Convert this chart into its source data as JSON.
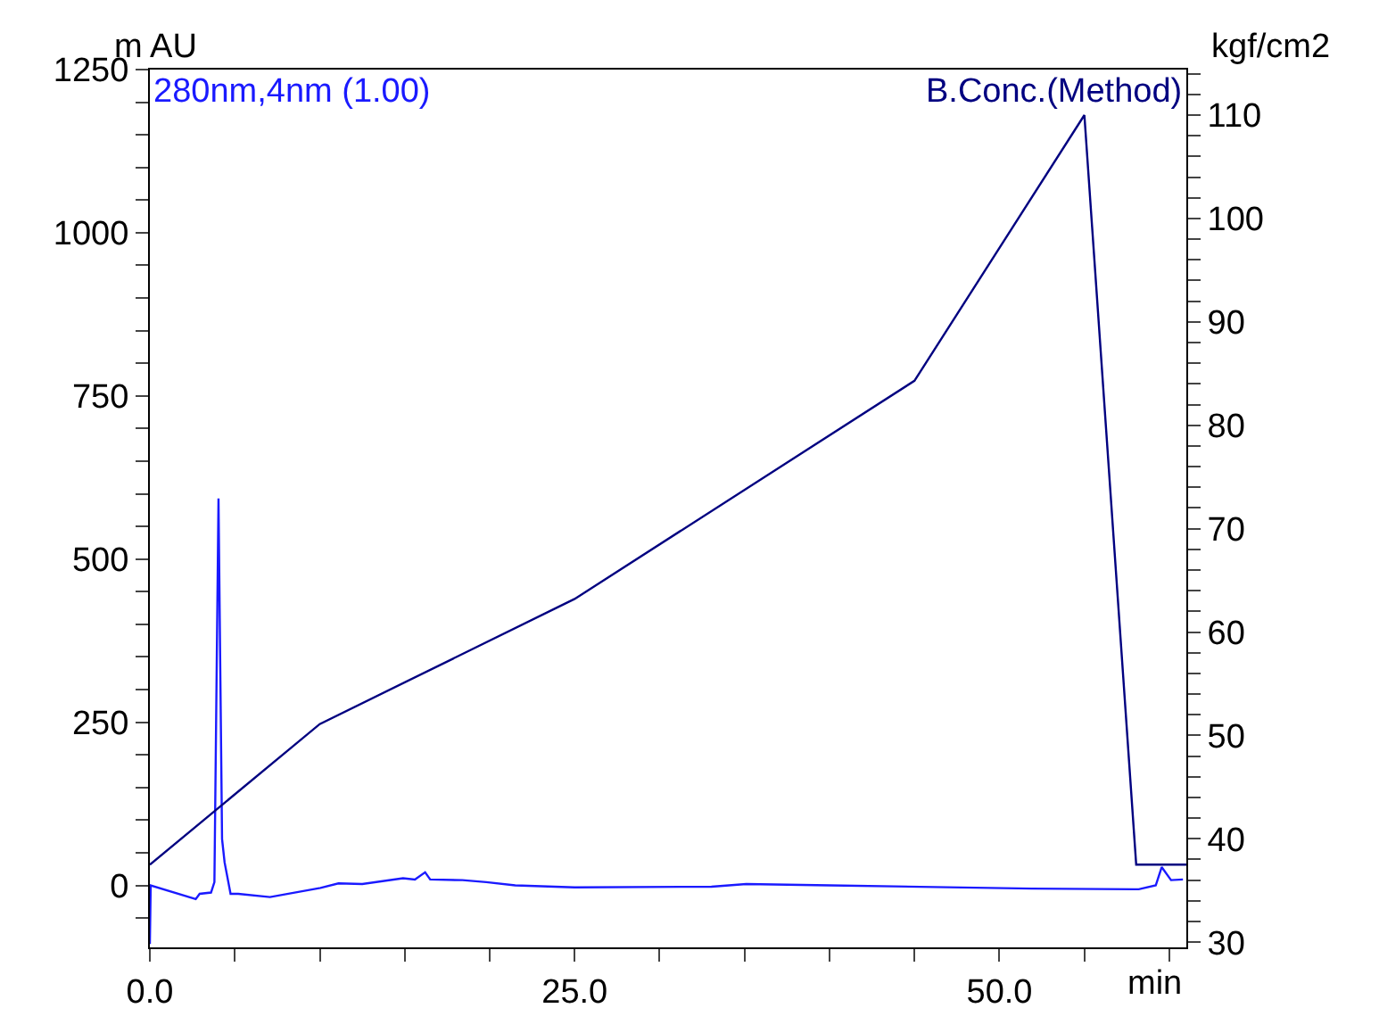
{
  "chart_data": {
    "type": "line",
    "xlabel": "min",
    "ylabel": "m AU",
    "y2label": "kgf/cm2",
    "xlim": [
      0,
      61
    ],
    "ylim": [
      -95,
      1250
    ],
    "y2lim": [
      29.5,
      114.4
    ],
    "xticks": [
      {
        "value": 0,
        "label": "0.0"
      },
      {
        "value": 5,
        "label": null
      },
      {
        "value": 10,
        "label": null
      },
      {
        "value": 15,
        "label": null
      },
      {
        "value": 20,
        "label": null
      },
      {
        "value": 25,
        "label": "25.0"
      },
      {
        "value": 30,
        "label": null
      },
      {
        "value": 35,
        "label": null
      },
      {
        "value": 40,
        "label": null
      },
      {
        "value": 45,
        "label": null
      },
      {
        "value": 50,
        "label": "50.0"
      },
      {
        "value": 55,
        "label": null
      },
      {
        "value": 60,
        "label": null
      }
    ],
    "yticks": [
      {
        "value": -50,
        "label": null
      },
      0,
      {
        "value": 50,
        "label": null
      },
      {
        "value": 100,
        "label": null
      },
      {
        "value": 150,
        "label": null
      },
      {
        "value": 200,
        "label": null
      },
      250,
      {
        "value": 300,
        "label": null
      },
      {
        "value": 350,
        "label": null
      },
      {
        "value": 400,
        "label": null
      },
      {
        "value": 450,
        "label": null
      },
      500,
      {
        "value": 550,
        "label": null
      },
      {
        "value": 600,
        "label": null
      },
      {
        "value": 650,
        "label": null
      },
      {
        "value": 700,
        "label": null
      },
      750,
      {
        "value": 800,
        "label": null
      },
      {
        "value": 850,
        "label": null
      },
      {
        "value": 900,
        "label": null
      },
      {
        "value": 950,
        "label": null
      },
      1000,
      {
        "value": 1050,
        "label": null
      },
      {
        "value": 1100,
        "label": null
      },
      {
        "value": 1150,
        "label": null
      },
      {
        "value": 1200,
        "label": null
      },
      1250
    ],
    "y2ticks": [
      30,
      {
        "value": 32,
        "label": null
      },
      {
        "value": 34,
        "label": null
      },
      {
        "value": 36,
        "label": null
      },
      {
        "value": 38,
        "label": null
      },
      40,
      {
        "value": 42,
        "label": null
      },
      {
        "value": 44,
        "label": null
      },
      {
        "value": 46,
        "label": null
      },
      {
        "value": 48,
        "label": null
      },
      50,
      {
        "value": 52,
        "label": null
      },
      {
        "value": 54,
        "label": null
      },
      {
        "value": 56,
        "label": null
      },
      {
        "value": 58,
        "label": null
      },
      60,
      {
        "value": 62,
        "label": null
      },
      {
        "value": 64,
        "label": null
      },
      {
        "value": 66,
        "label": null
      },
      {
        "value": 68,
        "label": null
      },
      70,
      {
        "value": 72,
        "label": null
      },
      {
        "value": 74,
        "label": null
      },
      {
        "value": 76,
        "label": null
      },
      {
        "value": 78,
        "label": null
      },
      80,
      {
        "value": 82,
        "label": null
      },
      {
        "value": 84,
        "label": null
      },
      {
        "value": 86,
        "label": null
      },
      {
        "value": 88,
        "label": null
      },
      90,
      {
        "value": 92,
        "label": null
      },
      {
        "value": 94,
        "label": null
      },
      {
        "value": 96,
        "label": null
      },
      {
        "value": 98,
        "label": null
      },
      100,
      {
        "value": 102,
        "label": null
      },
      {
        "value": 104,
        "label": null
      },
      {
        "value": 106,
        "label": null
      },
      {
        "value": 108,
        "label": null
      },
      110,
      {
        "value": 112,
        "label": null
      },
      {
        "value": 114,
        "label": null
      }
    ],
    "legend": false,
    "marker": "none",
    "line_style": "solid",
    "series": [
      {
        "name": "280nm,4nm (1.00)",
        "color": "#1a1aff",
        "x": [
          0,
          0.05,
          2.7,
          2.93,
          3.6,
          3.8,
          4.04,
          4.25,
          4.4,
          4.75,
          5.2,
          7.07,
          10.04,
          11.1,
          12.5,
          14.9,
          15.6,
          16.2,
          16.5,
          18.4,
          19.8,
          21.5,
          25.0,
          33.05,
          35.1,
          40.0,
          51.9,
          58.2,
          59.2,
          59.55,
          60.1,
          60.8
        ],
        "values": [
          -90,
          0,
          -21,
          -13,
          -11,
          5,
          593,
          71,
          35,
          -13,
          -13,
          -18,
          -4,
          3,
          2,
          11,
          9,
          20,
          9,
          8,
          5,
          0,
          -3,
          -2,
          2,
          0,
          -5,
          -6,
          0,
          28,
          8,
          9
        ]
      },
      {
        "name": "B.Conc.(Method)",
        "color": "#000080",
        "axis": "y2",
        "x": [
          0,
          10,
          25,
          45,
          55,
          58.05,
          61
        ],
        "values": [
          37.5,
          51.1,
          63.2,
          84.3,
          110,
          37.5,
          37.5
        ]
      }
    ]
  }
}
